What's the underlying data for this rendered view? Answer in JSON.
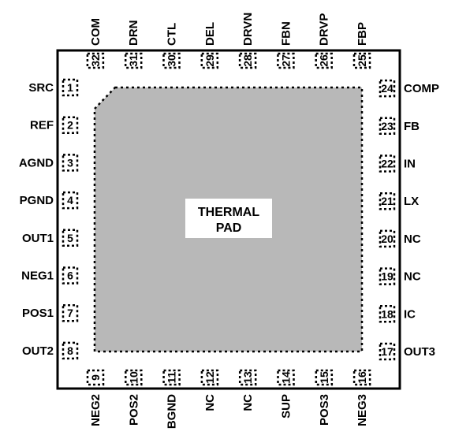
{
  "pad_label": {
    "line1": "THERMAL",
    "line2": "PAD"
  },
  "pins": {
    "left": [
      {
        "num": "1",
        "name": "SRC"
      },
      {
        "num": "2",
        "name": "REF"
      },
      {
        "num": "3",
        "name": "AGND"
      },
      {
        "num": "4",
        "name": "PGND"
      },
      {
        "num": "5",
        "name": "OUT1"
      },
      {
        "num": "6",
        "name": "NEG1"
      },
      {
        "num": "7",
        "name": "POS1"
      },
      {
        "num": "8",
        "name": "OUT2"
      }
    ],
    "bottom": [
      {
        "num": "9",
        "name": "NEG2"
      },
      {
        "num": "10",
        "name": "POS2"
      },
      {
        "num": "11",
        "name": "BGND"
      },
      {
        "num": "12",
        "name": "NC"
      },
      {
        "num": "13",
        "name": "NC"
      },
      {
        "num": "14",
        "name": "SUP"
      },
      {
        "num": "15",
        "name": "POS3"
      },
      {
        "num": "16",
        "name": "NEG3"
      }
    ],
    "right": [
      {
        "num": "17",
        "name": "OUT3"
      },
      {
        "num": "18",
        "name": "IC"
      },
      {
        "num": "19",
        "name": "NC"
      },
      {
        "num": "20",
        "name": "NC"
      },
      {
        "num": "21",
        "name": "LX"
      },
      {
        "num": "22",
        "name": "IN"
      },
      {
        "num": "23",
        "name": "FB"
      },
      {
        "num": "24",
        "name": "COMP"
      }
    ],
    "top": [
      {
        "num": "25",
        "name": "FBP"
      },
      {
        "num": "26",
        "name": "DRVP"
      },
      {
        "num": "27",
        "name": "FBN"
      },
      {
        "num": "28",
        "name": "DRVN"
      },
      {
        "num": "29",
        "name": "DEL"
      },
      {
        "num": "30",
        "name": "CTL"
      },
      {
        "num": "31",
        "name": "DRN"
      },
      {
        "num": "32",
        "name": "COM"
      }
    ]
  }
}
